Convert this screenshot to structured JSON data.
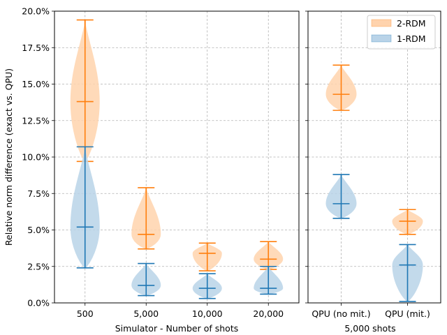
{
  "chart_data": [
    {
      "type": "violin",
      "panel": "simulator",
      "xlabel": "Simulator - Number of shots",
      "ylabel": "Relative norm difference (exact vs. QPU)",
      "ylim": [
        0,
        20
      ],
      "yticks": [
        "0.0%",
        "2.5%",
        "5.0%",
        "7.5%",
        "10.0%",
        "12.5%",
        "15.0%",
        "17.5%",
        "20.0%"
      ],
      "grid": true,
      "categories": [
        "500",
        "5,000",
        "10,000",
        "20,000"
      ],
      "series": [
        {
          "name": "2-RDM",
          "color": "#ff7f0e",
          "fill": "#ffd3ad",
          "min": [
            9.7,
            3.7,
            2.2,
            2.3
          ],
          "median": [
            13.8,
            4.7,
            3.4,
            3.0
          ],
          "max": [
            19.4,
            7.9,
            4.1,
            4.2
          ]
        },
        {
          "name": "1-RDM",
          "color": "#1f77b4",
          "fill": "#b9d3e8",
          "min": [
            2.4,
            0.5,
            0.3,
            0.6
          ],
          "median": [
            5.2,
            1.2,
            1.0,
            1.0
          ],
          "max": [
            10.7,
            2.7,
            2.0,
            2.5
          ]
        }
      ]
    },
    {
      "type": "violin",
      "panel": "qpu",
      "xlabel": "5,000 shots",
      "ylim": [
        0,
        20
      ],
      "grid": true,
      "legend": {
        "position": "top-right",
        "entries": [
          "2-RDM",
          "1-RDM"
        ]
      },
      "categories": [
        "QPU (no mit.)",
        "QPU (mit.)"
      ],
      "series": [
        {
          "name": "2-RDM",
          "color": "#ff7f0e",
          "fill": "#ffd3ad",
          "min": [
            13.2,
            4.7
          ],
          "median": [
            14.3,
            5.6
          ],
          "max": [
            16.3,
            6.4
          ]
        },
        {
          "name": "1-RDM",
          "color": "#1f77b4",
          "fill": "#b9d3e8",
          "min": [
            5.8,
            0.1
          ],
          "median": [
            6.8,
            2.6
          ],
          "max": [
            8.8,
            4.0
          ]
        }
      ]
    }
  ]
}
